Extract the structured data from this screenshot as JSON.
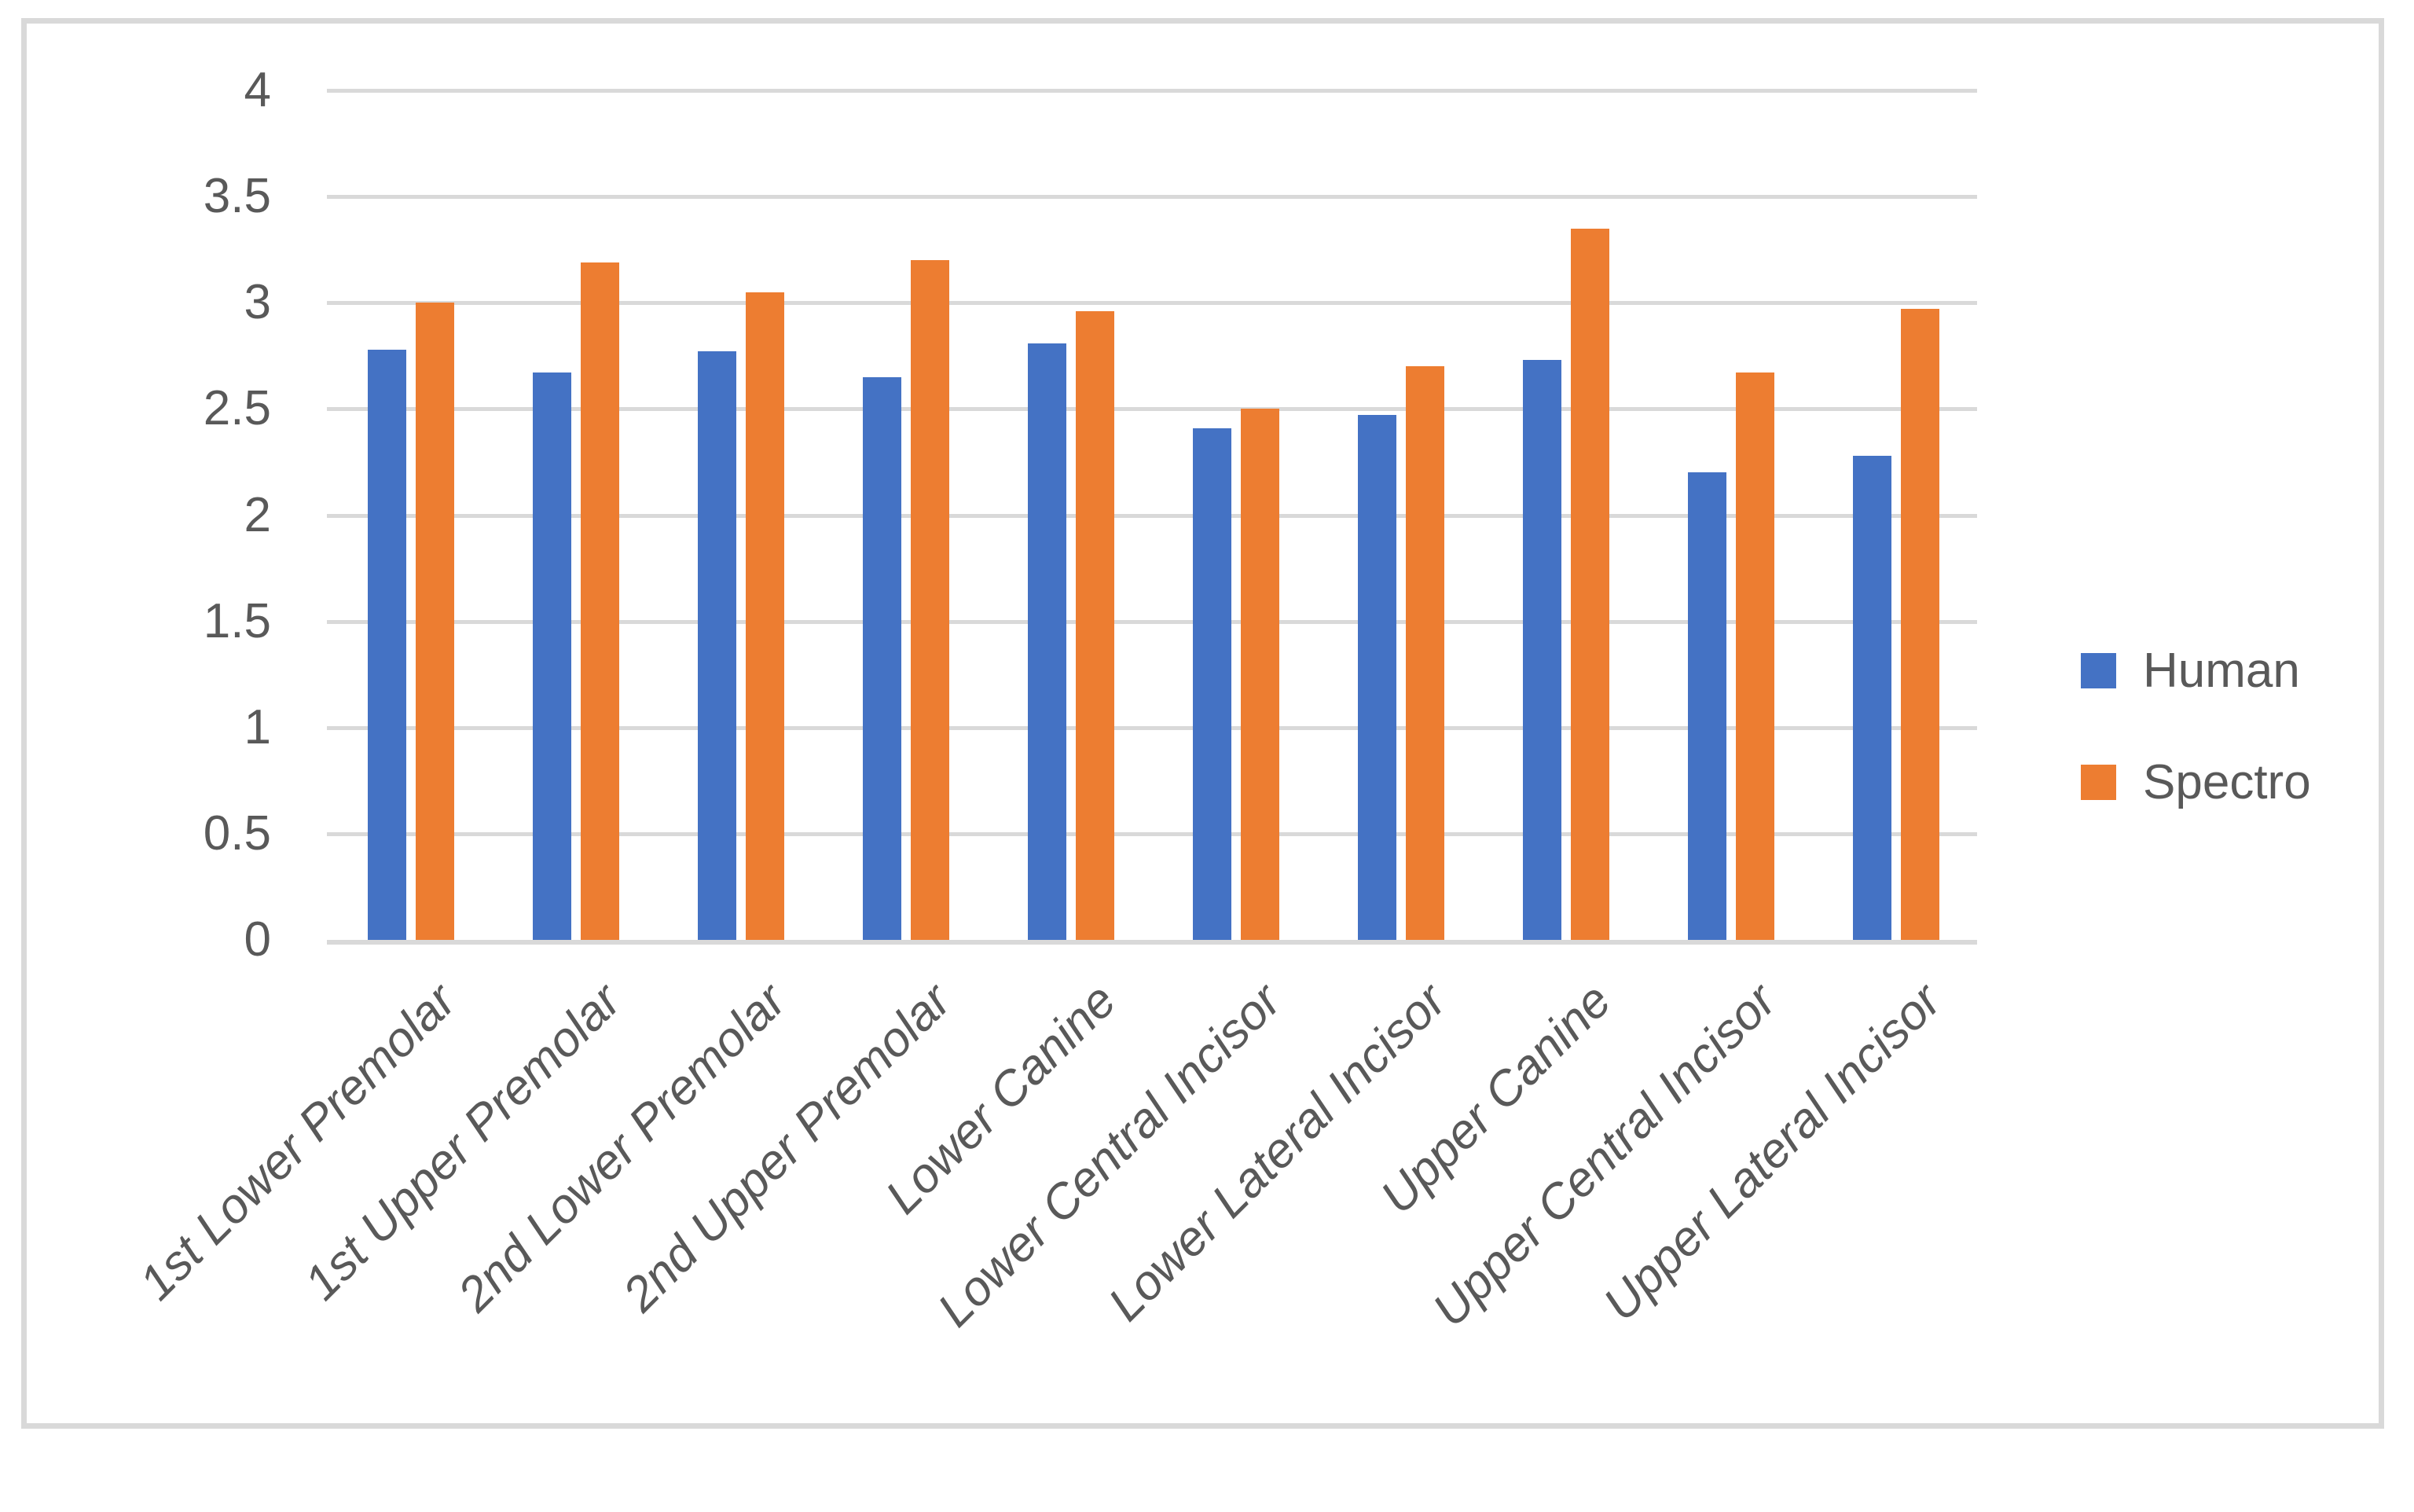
{
  "chart_data": {
    "type": "bar",
    "title": "",
    "xlabel": "",
    "ylabel": "",
    "categories": [
      "1st Lower Premolar",
      "1st Upper Premolar",
      "2nd Lower Premolar",
      "2nd Upper Premolar",
      "Lower Canine",
      "Lower Central Incisor",
      "Lower Lateral Incisor",
      "Upper Canine",
      "Upper Central Incisor",
      "Upper Lateral Incisor"
    ],
    "series": [
      {
        "name": "Human",
        "color": "#4472C4",
        "values": [
          2.78,
          2.67,
          2.77,
          2.65,
          2.81,
          2.41,
          2.47,
          2.73,
          2.2,
          2.28
        ]
      },
      {
        "name": "Spectro",
        "color": "#ED7D31",
        "values": [
          3.0,
          3.19,
          3.05,
          3.2,
          2.96,
          2.5,
          2.7,
          3.35,
          2.67,
          2.97
        ]
      }
    ],
    "ylim": [
      0,
      4
    ],
    "ytick_step": 0.5,
    "ytick_labels": [
      "4",
      "3.5",
      "3",
      "2.5",
      "2",
      "1.5",
      "1",
      "0.5",
      "0"
    ],
    "grid": true,
    "legend_position": "middle-right",
    "colors": {
      "text": "#595959",
      "gridline": "#D9D9D9",
      "axis": "#D9D9D9",
      "border": "#D9D9D9",
      "background": "#FFFFFF"
    }
  }
}
